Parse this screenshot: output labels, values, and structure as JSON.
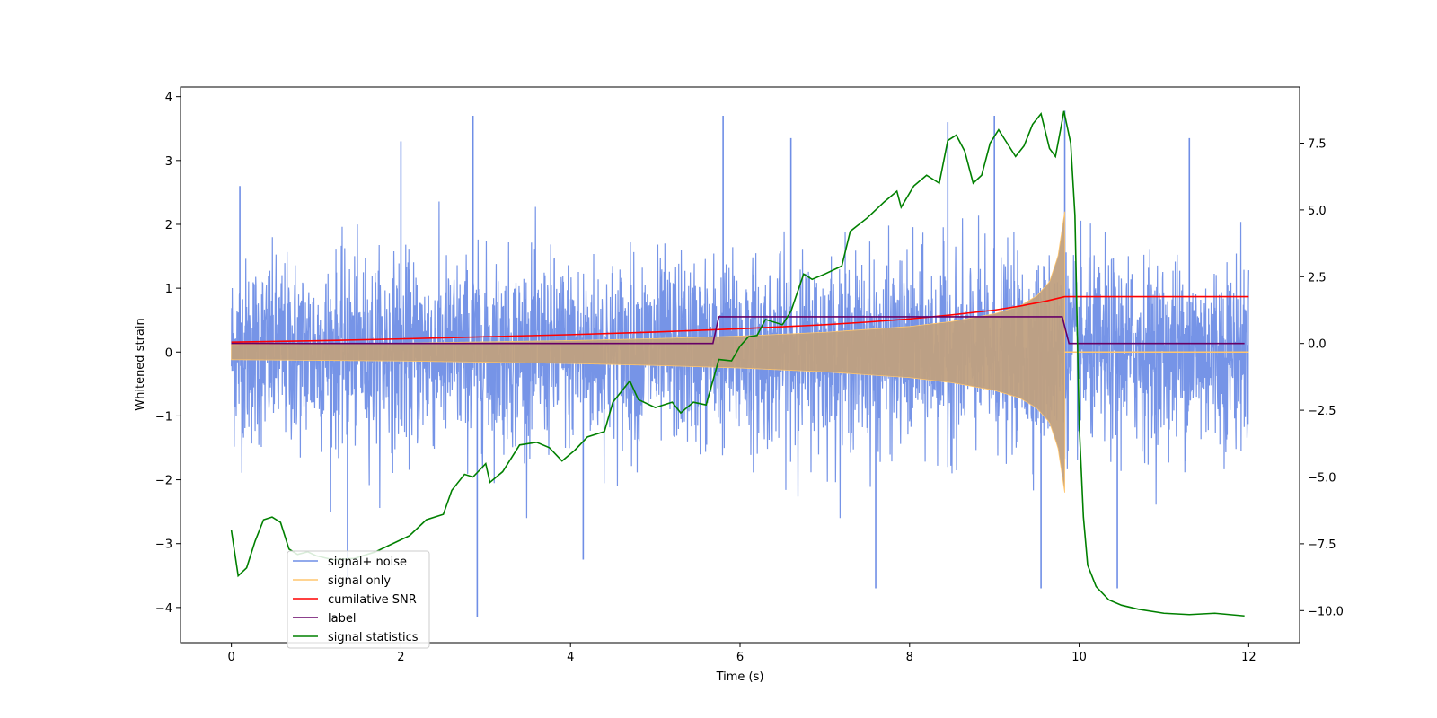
{
  "chart_data": {
    "type": "line",
    "xlabel": "Time (s)",
    "ylabel": "Whitened strain",
    "y2label": "",
    "xlim": [
      -0.6,
      12.6
    ],
    "ylim": [
      -4.55,
      4.15
    ],
    "y2lim": [
      -11.2,
      9.6
    ],
    "x_ticks": [
      0,
      2,
      4,
      6,
      8,
      10,
      12
    ],
    "y_ticks": [
      -4,
      -3,
      -2,
      -1,
      0,
      1,
      2,
      3,
      4
    ],
    "y2_ticks": [
      -10.0,
      -7.5,
      -5.0,
      -2.5,
      0.0,
      2.5,
      5.0,
      7.5
    ],
    "x_tick_labels": [
      "0",
      "2",
      "4",
      "6",
      "8",
      "10",
      "12"
    ],
    "y_tick_labels": [
      "−4",
      "−3",
      "−2",
      "−1",
      "0",
      "1",
      "2",
      "3",
      "4"
    ],
    "y2_tick_labels": [
      "−10.0",
      "−7.5",
      "−5.0",
      "−2.5",
      "0.0",
      "2.5",
      "5.0",
      "7.5"
    ],
    "grid": false,
    "legend_position": "lower-left",
    "series": [
      {
        "name": "signal+ noise",
        "axis": "left",
        "color": "#6f8ee6",
        "style": "dense-noise",
        "x_range": [
          0,
          12
        ],
        "noise_sigma": 1.0,
        "peaks": [
          {
            "x": 0.1,
            "y": 2.6
          },
          {
            "x": 1.37,
            "y": -3.55
          },
          {
            "x": 2.0,
            "y": 3.3
          },
          {
            "x": 2.85,
            "y": 3.7
          },
          {
            "x": 2.9,
            "y": -4.15
          },
          {
            "x": 4.15,
            "y": -3.25
          },
          {
            "x": 5.8,
            "y": 3.7
          },
          {
            "x": 6.6,
            "y": 3.35
          },
          {
            "x": 7.6,
            "y": -3.7
          },
          {
            "x": 8.45,
            "y": 3.6
          },
          {
            "x": 9.0,
            "y": 3.7
          },
          {
            "x": 9.55,
            "y": -3.7
          },
          {
            "x": 9.83,
            "y": 3.78
          },
          {
            "x": 10.45,
            "y": -3.7
          },
          {
            "x": 11.3,
            "y": 3.35
          }
        ]
      },
      {
        "name": "signal only",
        "axis": "left",
        "color": "#ffc66e",
        "style": "chirp-envelope",
        "x_range": [
          0,
          12
        ],
        "merger_x": 9.83,
        "points": [
          [
            0,
            0.12
          ],
          [
            1,
            0.13
          ],
          [
            2,
            0.14
          ],
          [
            3,
            0.16
          ],
          [
            4,
            0.18
          ],
          [
            5,
            0.21
          ],
          [
            6,
            0.25
          ],
          [
            7,
            0.31
          ],
          [
            8,
            0.4
          ],
          [
            8.5,
            0.48
          ],
          [
            9.0,
            0.6
          ],
          [
            9.3,
            0.72
          ],
          [
            9.5,
            0.88
          ],
          [
            9.65,
            1.1
          ],
          [
            9.75,
            1.5
          ],
          [
            9.83,
            2.2
          ],
          [
            9.86,
            0.0
          ],
          [
            12,
            0.0
          ]
        ]
      },
      {
        "name": "cumilative SNR",
        "axis": "right",
        "color": "#ff0000",
        "points": [
          [
            0,
            0.05
          ],
          [
            1,
            0.1
          ],
          [
            2,
            0.17
          ],
          [
            3,
            0.25
          ],
          [
            4,
            0.33
          ],
          [
            5,
            0.43
          ],
          [
            6,
            0.55
          ],
          [
            7,
            0.7
          ],
          [
            7.5,
            0.8
          ],
          [
            8,
            0.92
          ],
          [
            8.5,
            1.07
          ],
          [
            9,
            1.25
          ],
          [
            9.3,
            1.4
          ],
          [
            9.6,
            1.58
          ],
          [
            9.83,
            1.75
          ],
          [
            12,
            1.75
          ]
        ]
      },
      {
        "name": "label",
        "axis": "right",
        "color": "#660066",
        "points": [
          [
            0,
            0
          ],
          [
            5.68,
            0
          ],
          [
            5.75,
            1.0
          ],
          [
            9.8,
            1.0
          ],
          [
            9.88,
            0
          ],
          [
            11.95,
            0
          ]
        ]
      },
      {
        "name": "signal statistics",
        "axis": "right",
        "color": "#008000",
        "points": [
          [
            0,
            -7.0
          ],
          [
            0.08,
            -8.7
          ],
          [
            0.18,
            -8.4
          ],
          [
            0.28,
            -7.4
          ],
          [
            0.38,
            -6.6
          ],
          [
            0.48,
            -6.5
          ],
          [
            0.58,
            -6.7
          ],
          [
            0.68,
            -7.7
          ],
          [
            0.78,
            -7.9
          ],
          [
            0.9,
            -7.8
          ],
          [
            1.0,
            -7.95
          ],
          [
            1.2,
            -8.1
          ],
          [
            1.45,
            -8.05
          ],
          [
            1.7,
            -7.8
          ],
          [
            1.9,
            -7.5
          ],
          [
            2.1,
            -7.2
          ],
          [
            2.3,
            -6.6
          ],
          [
            2.5,
            -6.4
          ],
          [
            2.6,
            -5.5
          ],
          [
            2.75,
            -4.9
          ],
          [
            2.85,
            -5.0
          ],
          [
            3.0,
            -4.5
          ],
          [
            3.05,
            -5.2
          ],
          [
            3.2,
            -4.8
          ],
          [
            3.4,
            -3.8
          ],
          [
            3.6,
            -3.7
          ],
          [
            3.75,
            -3.9
          ],
          [
            3.9,
            -4.4
          ],
          [
            4.05,
            -4.0
          ],
          [
            4.2,
            -3.5
          ],
          [
            4.4,
            -3.3
          ],
          [
            4.5,
            -2.2
          ],
          [
            4.7,
            -1.4
          ],
          [
            4.8,
            -2.1
          ],
          [
            5.0,
            -2.4
          ],
          [
            5.2,
            -2.2
          ],
          [
            5.3,
            -2.6
          ],
          [
            5.45,
            -2.2
          ],
          [
            5.6,
            -2.3
          ],
          [
            5.75,
            -0.6
          ],
          [
            5.9,
            -0.65
          ],
          [
            6.0,
            -0.1
          ],
          [
            6.1,
            0.25
          ],
          [
            6.2,
            0.3
          ],
          [
            6.3,
            0.9
          ],
          [
            6.5,
            0.7
          ],
          [
            6.6,
            1.2
          ],
          [
            6.75,
            2.6
          ],
          [
            6.85,
            2.4
          ],
          [
            7.0,
            2.6
          ],
          [
            7.2,
            2.9
          ],
          [
            7.3,
            4.2
          ],
          [
            7.5,
            4.7
          ],
          [
            7.7,
            5.3
          ],
          [
            7.85,
            5.7
          ],
          [
            7.9,
            5.1
          ],
          [
            8.05,
            5.9
          ],
          [
            8.2,
            6.3
          ],
          [
            8.35,
            6.0
          ],
          [
            8.45,
            7.6
          ],
          [
            8.55,
            7.8
          ],
          [
            8.65,
            7.2
          ],
          [
            8.75,
            6.0
          ],
          [
            8.85,
            6.3
          ],
          [
            8.95,
            7.5
          ],
          [
            9.05,
            8.0
          ],
          [
            9.15,
            7.5
          ],
          [
            9.25,
            7.0
          ],
          [
            9.35,
            7.4
          ],
          [
            9.45,
            8.2
          ],
          [
            9.55,
            8.6
          ],
          [
            9.65,
            7.3
          ],
          [
            9.72,
            7.0
          ],
          [
            9.78,
            8.0
          ],
          [
            9.82,
            8.7
          ],
          [
            9.9,
            7.5
          ],
          [
            9.95,
            4.8
          ],
          [
            10.0,
            -3.0
          ],
          [
            10.05,
            -6.5
          ],
          [
            10.1,
            -8.3
          ],
          [
            10.2,
            -9.1
          ],
          [
            10.35,
            -9.6
          ],
          [
            10.5,
            -9.8
          ],
          [
            10.7,
            -9.95
          ],
          [
            11.0,
            -10.1
          ],
          [
            11.3,
            -10.15
          ],
          [
            11.6,
            -10.1
          ],
          [
            11.95,
            -10.2
          ]
        ]
      }
    ]
  }
}
